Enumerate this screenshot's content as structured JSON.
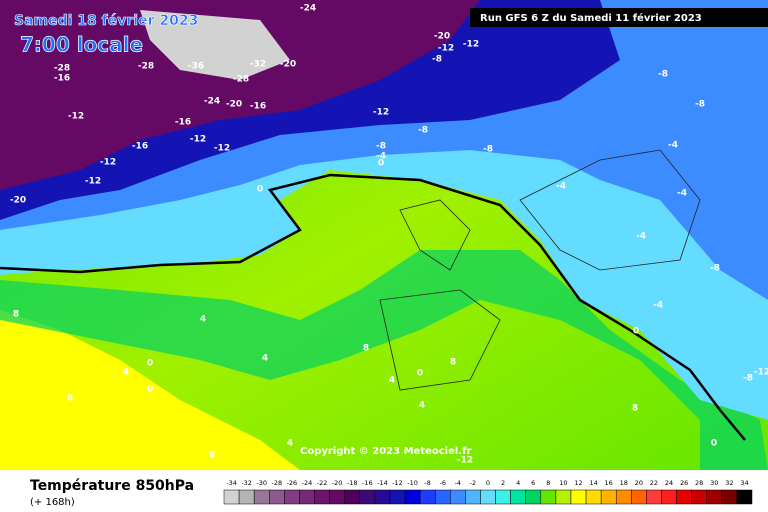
{
  "header": {
    "date": "Samedi 18 février 2023",
    "time": "7:00 locale",
    "run": "Run GFS 6 Z du Samedi 11 février 2023"
  },
  "copyright": "Copyright © 2023 Meteociel.fr",
  "footer": {
    "title": "Température 850hPa",
    "lead": "(+ 168h)"
  },
  "scale": {
    "values": [
      -34,
      -32,
      -30,
      -28,
      -26,
      -24,
      -22,
      -20,
      -18,
      -16,
      -14,
      -12,
      -10,
      -8,
      -6,
      -4,
      -2,
      0,
      2,
      4,
      6,
      8,
      10,
      12,
      14,
      16,
      18,
      20,
      22,
      24,
      26,
      28,
      30,
      32,
      34
    ],
    "colors": [
      "#d2d2d2",
      "#b4b4b4",
      "#967896",
      "#8c5a8c",
      "#823c82",
      "#782878",
      "#6e146e",
      "#640a64",
      "#50005a",
      "#3c0a78",
      "#280a96",
      "#1414b4",
      "#0000dc",
      "#1e3cff",
      "#2864ff",
      "#3c8cff",
      "#50b4ff",
      "#64dcff",
      "#3cf0e6",
      "#00e6a0",
      "#00d264",
      "#64e600",
      "#b4f000",
      "#ffff00",
      "#ffdc00",
      "#ffb400",
      "#ff8c00",
      "#ff6400",
      "#ff3c3c",
      "#ff1e1e",
      "#e60000",
      "#c80000",
      "#a00000",
      "#780000",
      "#000000"
    ]
  },
  "contour_labels": [
    -24,
    -20,
    -12,
    -12,
    -8,
    -36,
    -28,
    -28,
    -32,
    -28,
    -20,
    -16,
    -24,
    -20,
    -16,
    -16,
    -12,
    -12,
    -12,
    -16,
    -12,
    -12,
    -20,
    -12,
    -8,
    -8,
    -4,
    0,
    -8,
    -8,
    -8,
    -8,
    -4,
    -4,
    -4,
    -4,
    -8,
    -4,
    0,
    0,
    4,
    4,
    0,
    0,
    4,
    8,
    8,
    4,
    0,
    4,
    8,
    8,
    0,
    8,
    4,
    8,
    -12,
    -12
  ]
}
